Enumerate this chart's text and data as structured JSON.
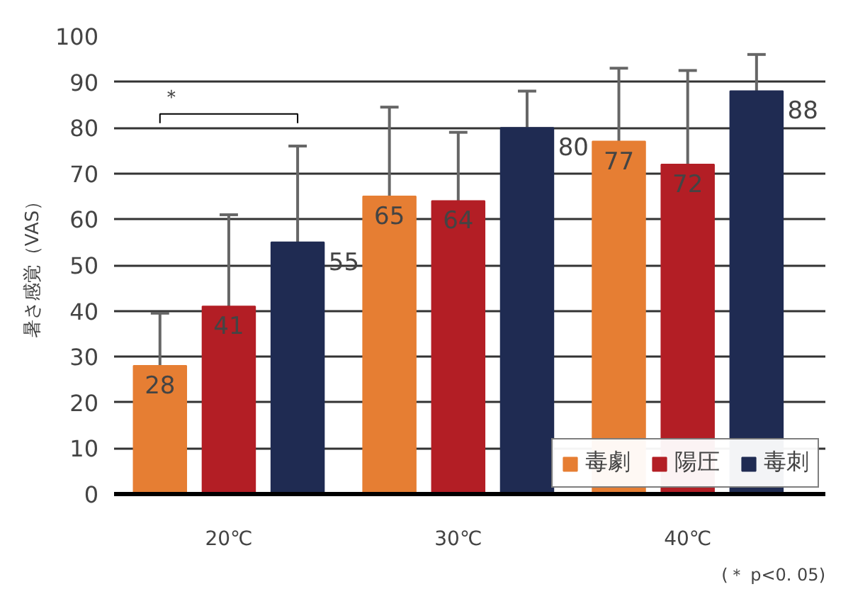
{
  "chart_data": {
    "type": "bar",
    "ylabel": "暑さ感覚（VAS）",
    "categories": [
      "20℃",
      "30℃",
      "40℃"
    ],
    "series": [
      {
        "name": "毒劇",
        "color": "#e67e33",
        "values": [
          28,
          65,
          77
        ],
        "errors": [
          [
            28,
            39.5
          ],
          [
            65,
            84.5
          ],
          [
            77,
            93
          ]
        ]
      },
      {
        "name": "陽圧",
        "color": "#b31e25",
        "values": [
          41,
          64,
          72
        ],
        "errors": [
          [
            41,
            61
          ],
          [
            64,
            79
          ],
          [
            72,
            92.5
          ]
        ]
      },
      {
        "name": "毒刺",
        "color": "#1f2b52",
        "values": [
          55,
          80,
          88
        ],
        "errors": [
          [
            55,
            76
          ],
          [
            80,
            88
          ],
          [
            88,
            96
          ]
        ]
      }
    ],
    "ylim": [
      0,
      100
    ],
    "yticks": [
      0,
      10,
      20,
      30,
      40,
      50,
      60,
      70,
      80,
      90,
      100
    ],
    "grid": "y",
    "legend": "bottom right",
    "data_labels": true,
    "annotations": [
      "＊",
      "(＊ p<0. 05)"
    ]
  }
}
